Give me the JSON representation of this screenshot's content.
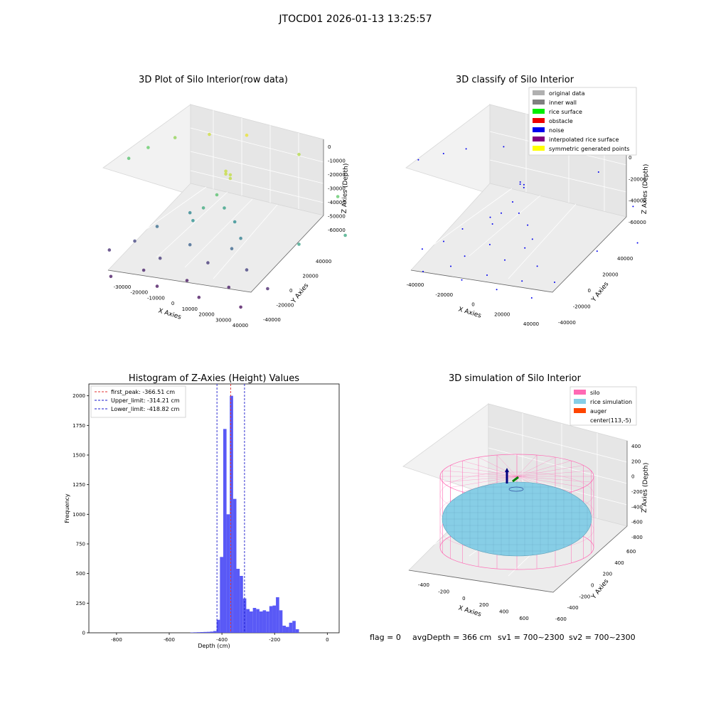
{
  "suptitle": "JTOCD01 2026-01-13 13:25:57",
  "footer": {
    "flag": "flag = 0",
    "avg_depth": "avgDepth = 366 cm",
    "sv1": "sv1 = 700~2300",
    "sv2": "sv2 = 700~2300"
  },
  "colors": {
    "hist_bar": "#5050f5",
    "peak_line": "#e03030",
    "limit_line": "#1a1acc",
    "silo": "#ff69b4",
    "rice": "#87cee6",
    "auger": "#ff4500",
    "noise": "#0000ee",
    "pane": "#f2f2f2"
  },
  "chart_data": [
    {
      "type": "scatter",
      "title": "3D Plot of Silo Interior(row data)",
      "xlabel": "X Axies",
      "ylabel": "Y Axies",
      "zlabel": "Z Axies (Depth)",
      "x_ticks": [
        "-30000",
        "-20000",
        "-10000",
        "0",
        "10000",
        "20000",
        "30000",
        "40000"
      ],
      "y_ticks": [
        "-40000",
        "-20000",
        "0",
        "20000",
        "40000"
      ],
      "z_ticks": [
        "0",
        "-10000",
        "-20000",
        "-30000",
        "-40000",
        "-50000",
        "-60000"
      ],
      "colormap": "viridis (by depth)",
      "points": [
        {
          "x": -32000,
          "y": 5000,
          "z": -20000
        },
        {
          "x": -30000,
          "y": 14000,
          "z": -17000
        },
        {
          "x": -25000,
          "y": 22000,
          "z": -12000
        },
        {
          "x": -15000,
          "y": 25000,
          "z": -5000
        },
        {
          "x": -5000,
          "y": 30000,
          "z": -2000
        },
        {
          "x": 10000,
          "y": 35000,
          "z": -8000
        },
        {
          "x": 28000,
          "y": 25000,
          "z": -18000
        },
        {
          "x": 38000,
          "y": 10000,
          "z": -28000
        },
        {
          "x": 30000,
          "y": -5000,
          "z": -30000
        },
        {
          "x": 2000,
          "y": 2000,
          "z": -6000
        },
        {
          "x": 3000,
          "y": 3000,
          "z": -6500
        },
        {
          "x": 4000,
          "y": 1000,
          "z": -7000
        },
        {
          "x": 1000,
          "y": 4000,
          "z": -6000
        },
        {
          "x": 0,
          "y": 0,
          "z": -20000
        },
        {
          "x": -2000,
          "y": -5000,
          "z": -27000
        },
        {
          "x": 1000,
          "y": 3000,
          "z": -30000
        },
        {
          "x": -4000,
          "y": -8000,
          "z": -35000
        },
        {
          "x": -9000,
          "y": 0,
          "z": -38000
        },
        {
          "x": 5000,
          "y": 2000,
          "z": -36000
        },
        {
          "x": 10000,
          "y": -4000,
          "z": -40000
        },
        {
          "x": -15000,
          "y": -10000,
          "z": -45000
        },
        {
          "x": -3000,
          "y": -12000,
          "z": -48000
        },
        {
          "x": 8000,
          "y": -6000,
          "z": -47000
        },
        {
          "x": -20000,
          "y": -15000,
          "z": -55000
        },
        {
          "x": -10000,
          "y": -18000,
          "z": -58000
        },
        {
          "x": 2000,
          "y": -10000,
          "z": -58000
        },
        {
          "x": 14000,
          "y": -8000,
          "z": -56000
        },
        {
          "x": -25000,
          "y": -22000,
          "z": -60000
        },
        {
          "x": -12000,
          "y": -25000,
          "z": -63000
        },
        {
          "x": 0,
          "y": -20000,
          "z": -65000
        },
        {
          "x": 12000,
          "y": -16000,
          "z": -64000
        },
        {
          "x": 22000,
          "y": -10000,
          "z": -62000
        },
        {
          "x": -5000,
          "y": -30000,
          "z": -66000
        },
        {
          "x": 8000,
          "y": -28000,
          "z": -66000
        },
        {
          "x": 20000,
          "y": -24000,
          "z": -67000
        },
        {
          "x": -18000,
          "y": -35000,
          "z": -65000
        }
      ]
    },
    {
      "type": "scatter",
      "title": "3D classify of Silo Interior",
      "xlabel": "X Axies",
      "ylabel": "Y Axies",
      "zlabel": "Z Axies (Depth)",
      "x_ticks": [
        "-40000",
        "-20000",
        "0",
        "20000",
        "40000"
      ],
      "y_ticks": [
        "-40000",
        "-20000",
        "0",
        "20000",
        "40000"
      ],
      "z_ticks": [
        "0",
        "-20000",
        "-40000",
        "-60000"
      ],
      "legend_placement": "top-right",
      "legend": [
        {
          "label": "original data",
          "color": "#b0b0b0"
        },
        {
          "label": "inner wall",
          "color": "#808080"
        },
        {
          "label": "rice surface",
          "color": "#00ee00"
        },
        {
          "label": "obstacle",
          "color": "#ee0000"
        },
        {
          "label": "noise",
          "color": "#0000ee"
        },
        {
          "label": "interpolated rice surface",
          "color": "#800080"
        },
        {
          "label": "symmetric generated points",
          "color": "#ffff00"
        }
      ],
      "points": [
        {
          "x": -42000,
          "y": 8000,
          "z": -20000
        },
        {
          "x": -36000,
          "y": 16000,
          "z": -16000
        },
        {
          "x": -30000,
          "y": 22000,
          "z": -12000
        },
        {
          "x": -18000,
          "y": 28000,
          "z": -6000
        },
        {
          "x": 0,
          "y": 32000,
          "z": -2000
        },
        {
          "x": 16000,
          "y": 36000,
          "z": -8000
        },
        {
          "x": 34000,
          "y": 28000,
          "z": -18000
        },
        {
          "x": 44000,
          "y": 12000,
          "z": -30000
        },
        {
          "x": 36000,
          "y": -4000,
          "z": -32000
        },
        {
          "x": 2000,
          "y": 2000,
          "z": -6000
        },
        {
          "x": 3000,
          "y": 3000,
          "z": -6400
        },
        {
          "x": 4000,
          "y": 1000,
          "z": -6800
        },
        {
          "x": 1000,
          "y": 4000,
          "z": -6200
        },
        {
          "x": 0,
          "y": 0,
          "z": -20000
        },
        {
          "x": -2000,
          "y": -5000,
          "z": -27000
        },
        {
          "x": 1000,
          "y": 3000,
          "z": -30000
        },
        {
          "x": -4000,
          "y": -8000,
          "z": -35000
        },
        {
          "x": -9000,
          "y": 0,
          "z": -38000
        },
        {
          "x": 5000,
          "y": 2000,
          "z": -36000
        },
        {
          "x": 10000,
          "y": -4000,
          "z": -40000
        },
        {
          "x": -15000,
          "y": -10000,
          "z": -45000
        },
        {
          "x": -3000,
          "y": -12000,
          "z": -48000
        },
        {
          "x": 8000,
          "y": -6000,
          "z": -47000
        },
        {
          "x": -20000,
          "y": -15000,
          "z": -55000
        },
        {
          "x": -10000,
          "y": -18000,
          "z": -58000
        },
        {
          "x": 2000,
          "y": -10000,
          "z": -58000
        },
        {
          "x": 14000,
          "y": -8000,
          "z": -56000
        },
        {
          "x": -25000,
          "y": -22000,
          "z": -60000
        },
        {
          "x": -12000,
          "y": -25000,
          "z": -63000
        },
        {
          "x": 0,
          "y": -20000,
          "z": -65000
        },
        {
          "x": 12000,
          "y": -16000,
          "z": -64000
        },
        {
          "x": 22000,
          "y": -10000,
          "z": -62000
        },
        {
          "x": -5000,
          "y": -30000,
          "z": -66000
        },
        {
          "x": 8000,
          "y": -28000,
          "z": -66000
        },
        {
          "x": 20000,
          "y": -24000,
          "z": -67000
        },
        {
          "x": -18000,
          "y": -35000,
          "z": -65000
        }
      ]
    },
    {
      "type": "bar",
      "title": "Histogram of Z-Axies (Height) Values",
      "xlabel": "Depth (cm)",
      "ylabel": "Frequency",
      "xlim": [
        -905,
        45
      ],
      "ylim": [
        0,
        2100
      ],
      "bin_width": 12.5,
      "x_ticks": [
        -800,
        -600,
        -400,
        -200,
        0
      ],
      "y_ticks": [
        0,
        250,
        500,
        750,
        1000,
        1250,
        1500,
        1750,
        2000
      ],
      "bins": [
        {
          "x0": -520,
          "count": 3
        },
        {
          "x0": -507.5,
          "count": 4
        },
        {
          "x0": -495,
          "count": 5
        },
        {
          "x0": -482.5,
          "count": 6
        },
        {
          "x0": -470,
          "count": 7
        },
        {
          "x0": -457.5,
          "count": 8
        },
        {
          "x0": -445,
          "count": 10
        },
        {
          "x0": -432.5,
          "count": 15
        },
        {
          "x0": -420,
          "count": 110
        },
        {
          "x0": -407.5,
          "count": 640
        },
        {
          "x0": -395,
          "count": 1720
        },
        {
          "x0": -382.5,
          "count": 1000
        },
        {
          "x0": -370,
          "count": 2000
        },
        {
          "x0": -357.5,
          "count": 1130
        },
        {
          "x0": -345,
          "count": 540
        },
        {
          "x0": -332.5,
          "count": 480
        },
        {
          "x0": -320,
          "count": 290
        },
        {
          "x0": -307.5,
          "count": 200
        },
        {
          "x0": -295,
          "count": 180
        },
        {
          "x0": -282.5,
          "count": 210
        },
        {
          "x0": -270,
          "count": 200
        },
        {
          "x0": -257.5,
          "count": 180
        },
        {
          "x0": -245,
          "count": 190
        },
        {
          "x0": -232.5,
          "count": 180
        },
        {
          "x0": -220,
          "count": 225
        },
        {
          "x0": -207.5,
          "count": 230
        },
        {
          "x0": -195,
          "count": 300
        },
        {
          "x0": -182.5,
          "count": 190
        },
        {
          "x0": -170,
          "count": 60
        },
        {
          "x0": -157.5,
          "count": 50
        },
        {
          "x0": -145,
          "count": 85
        },
        {
          "x0": -132.5,
          "count": 100
        },
        {
          "x0": -120,
          "count": 30
        }
      ],
      "vlines": [
        {
          "label": "first_peak: -366.51 cm",
          "x": -366.51,
          "color": "#e03030"
        },
        {
          "label": "Upper_limit: -314.21 cm",
          "x": -314.21,
          "color": "#1a1acc"
        },
        {
          "label": "Lower_limit: -418.82 cm",
          "x": -418.82,
          "color": "#1a1acc"
        }
      ],
      "legend_placement": "top-left"
    },
    {
      "type": "surface",
      "title": "3D simulation of Silo Interior",
      "xlabel": "X Axies",
      "ylabel": "Y Axies",
      "zlabel": "Z Axies (Depth)",
      "x_ticks": [
        "-400",
        "-200",
        "0",
        "200",
        "400",
        "600"
      ],
      "y_ticks": [
        "-600",
        "-400",
        "-200",
        "0",
        "200",
        "400",
        "600"
      ],
      "z_ticks": [
        "400",
        "200",
        "0",
        "-200",
        "-400",
        "-600",
        "-800"
      ],
      "legend_placement": "top-right",
      "legend": [
        {
          "label": "silo",
          "color": "#ff69b4"
        },
        {
          "label": "rice simulation",
          "color": "#87cee6"
        },
        {
          "label": "auger",
          "color": "#ff4500"
        },
        {
          "label": "center(113,-5)",
          "color": ""
        }
      ]
    }
  ]
}
